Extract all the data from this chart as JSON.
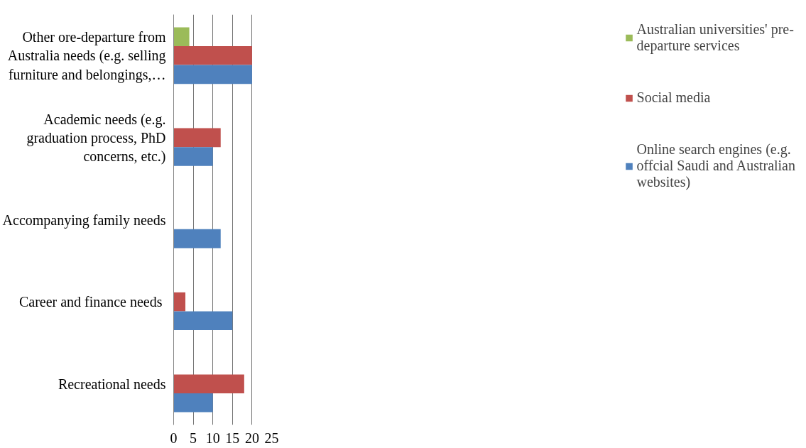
{
  "chart_data": {
    "type": "bar",
    "orientation": "horizontal",
    "categories": [
      "Other ore-departure from Australia needs (e.g. selling furniture and belongings,…",
      "Academic needs (e.g. graduation process, PhD concerns, etc.)",
      "Accompanying family needs",
      "Career and finance  needs",
      "Recreational needs"
    ],
    "series": [
      {
        "name": "Australian universities' pre-departure services",
        "color": "#9bbb59",
        "values": [
          4,
          null,
          null,
          null,
          null
        ]
      },
      {
        "name": "Social media",
        "color": "#c0504d",
        "values": [
          20,
          12,
          null,
          3,
          18
        ]
      },
      {
        "name": "Online search engines (e.g. offcial Saudi and Australian websites)",
        "color": "#4f81bd",
        "values": [
          20,
          10,
          12,
          15,
          10
        ]
      }
    ],
    "xlim": [
      0,
      25
    ],
    "xticks": [
      0,
      5,
      10,
      15,
      20,
      25
    ],
    "grid": "x",
    "legend": "right"
  }
}
